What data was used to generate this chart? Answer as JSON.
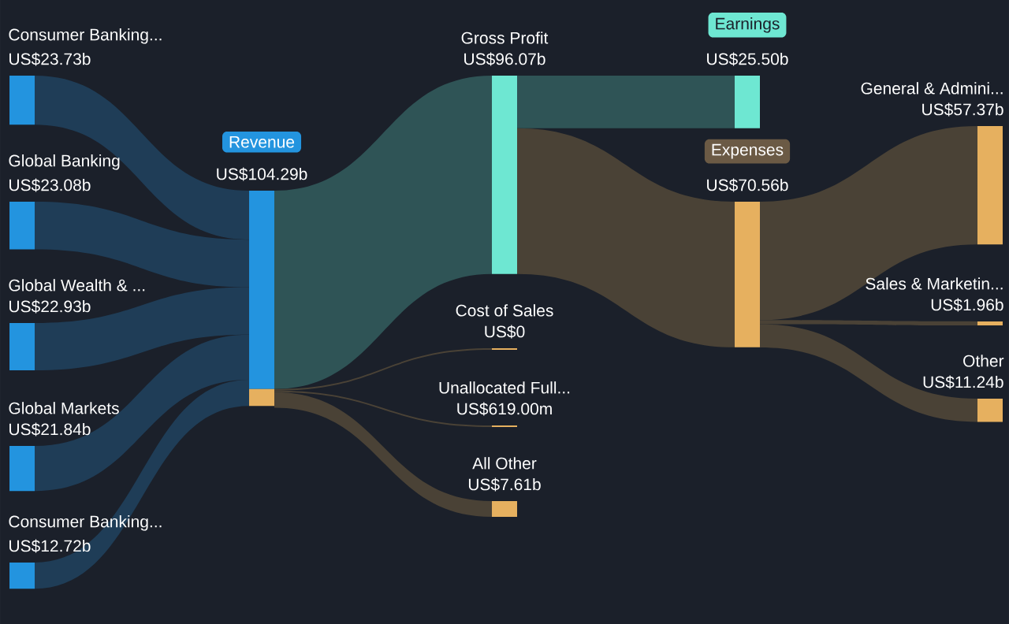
{
  "chart_data": {
    "type": "other",
    "categories": [
      "Consumer Banking...",
      "Global Banking",
      "Global Wealth & ...",
      "Global Markets",
      "Consumer Banking...",
      "Revenue",
      "Gross Profit",
      "Cost of Sales",
      "Unallocated Full...",
      "All Other",
      "Earnings",
      "Expenses",
      "General & Admini...",
      "Sales & Marketin...",
      "Other"
    ],
    "values": [
      23730000000,
      23080000000,
      22930000000,
      21840000000,
      12720000000,
      104290000000,
      96070000000,
      0,
      619000000,
      7610000000,
      25500000000,
      70560000000,
      57370000000,
      1960000000,
      11240000000
    ],
    "value_labels": [
      "US$23.73b",
      "US$23.08b",
      "US$22.93b",
      "US$21.84b",
      "US$12.72b",
      "US$104.29b",
      "US$96.07b",
      "US$0",
      "US$619.00m",
      "US$7.61b",
      "US$25.50b",
      "US$70.56b",
      "US$57.37b",
      "US$1.96b",
      "US$11.24b"
    ]
  }
}
